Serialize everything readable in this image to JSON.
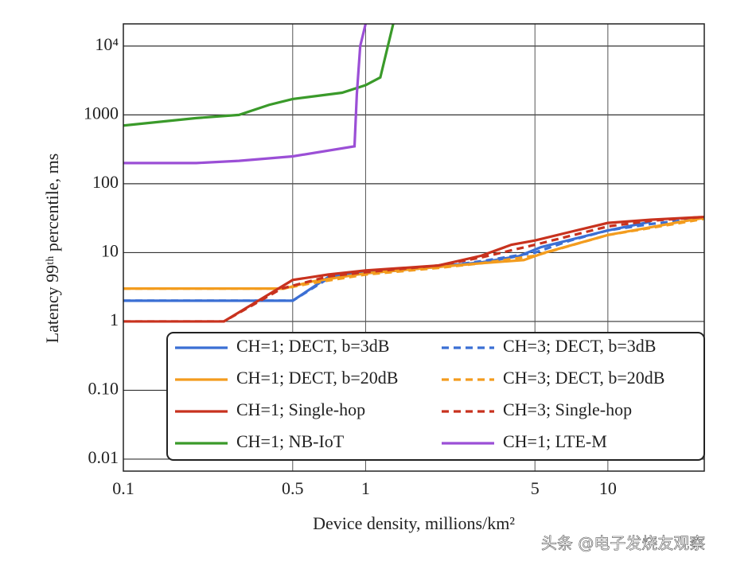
{
  "chart_data": {
    "type": "line",
    "xlabel": "Device density, millions/km²",
    "ylabel": "Latency 99ᵗʰ percentile, ms",
    "annotation": "头条 @电子发烧友观察",
    "xscale": "log",
    "yscale": "log",
    "grid": true,
    "legend": "lower right",
    "legend_columns": 2,
    "xlim": [
      0.1,
      25
    ],
    "ylim": [
      0.0067,
      21000
    ],
    "xticks": [
      0.1,
      0.5,
      1,
      5,
      10
    ],
    "yticks": [
      0.01,
      {
        "value": 0.1,
        "label": "0.10"
      },
      1,
      10,
      100,
      1000,
      {
        "value": 10000,
        "label": "10⁴"
      }
    ],
    "series": [
      {
        "name": "CH=1; DECT, b=3dB",
        "color": "#3b6fd4",
        "dash": false,
        "x": [
          0.1,
          0.5,
          0.7,
          1,
          2,
          3,
          4.3,
          5.3,
          10,
          15
        ],
        "values": [
          2,
          2,
          4.4,
          5.2,
          6.3,
          7.2,
          8.9,
          12,
          21,
          28
        ]
      },
      {
        "name": "CH=3; DECT, b=3dB",
        "color": "#3b6fd4",
        "dash": true,
        "x": [
          0.1,
          0.5,
          0.7,
          1,
          2,
          3,
          5,
          7,
          10,
          15,
          25
        ],
        "values": [
          2,
          2,
          4.2,
          5,
          6.2,
          7.5,
          10,
          15,
          21,
          26,
          32
        ]
      },
      {
        "name": "CH=1; DECT, b=20dB",
        "color": "#f39c1e",
        "dash": false,
        "x": [
          0.1,
          0.46,
          0.6,
          1,
          2,
          3,
          4.5,
          5.5,
          10,
          20,
          25
        ],
        "values": [
          3,
          3,
          3.8,
          5,
          6.2,
          7,
          7.8,
          10,
          18,
          28,
          32
        ]
      },
      {
        "name": "CH=3; DECT, b=20dB",
        "color": "#f39c1e",
        "dash": true,
        "x": [
          0.1,
          0.46,
          0.6,
          1,
          2,
          3,
          5,
          10,
          20,
          25
        ],
        "values": [
          3,
          3,
          3.6,
          4.8,
          6,
          7,
          9,
          18,
          27,
          31
        ]
      },
      {
        "name": "CH=1; Single-hop",
        "color": "#c8321e",
        "dash": false,
        "x": [
          0.1,
          0.26,
          0.5,
          0.7,
          1,
          2,
          3,
          4,
          5,
          7,
          10,
          15,
          25
        ],
        "values": [
          1,
          1,
          4,
          4.8,
          5.5,
          6.5,
          9,
          13,
          15,
          20,
          27,
          30,
          33
        ]
      },
      {
        "name": "CH=3; Single-hop",
        "color": "#c8321e",
        "dash": true,
        "x": [
          0.1,
          0.26,
          0.45,
          0.7,
          1,
          2,
          3,
          5,
          10,
          15,
          25
        ],
        "values": [
          1,
          1,
          3,
          4.5,
          5.2,
          6.5,
          8.5,
          13,
          24,
          29,
          33
        ]
      },
      {
        "name": "CH=1; NB-IoT",
        "color": "#3a9a2a",
        "dash": false,
        "x": [
          0.1,
          0.2,
          0.3,
          0.4,
          0.5,
          0.8,
          1,
          1.15,
          1.3
        ],
        "values": [
          700,
          900,
          1000,
          1400,
          1700,
          2100,
          2700,
          3500,
          21000
        ]
      },
      {
        "name": "CH=1; LTE-M",
        "color": "#9b4fd6",
        "dash": false,
        "x": [
          0.1,
          0.2,
          0.3,
          0.5,
          0.9,
          0.92,
          0.95,
          1
        ],
        "values": [
          200,
          200,
          215,
          250,
          350,
          2000,
          10000,
          21000
        ]
      }
    ]
  }
}
